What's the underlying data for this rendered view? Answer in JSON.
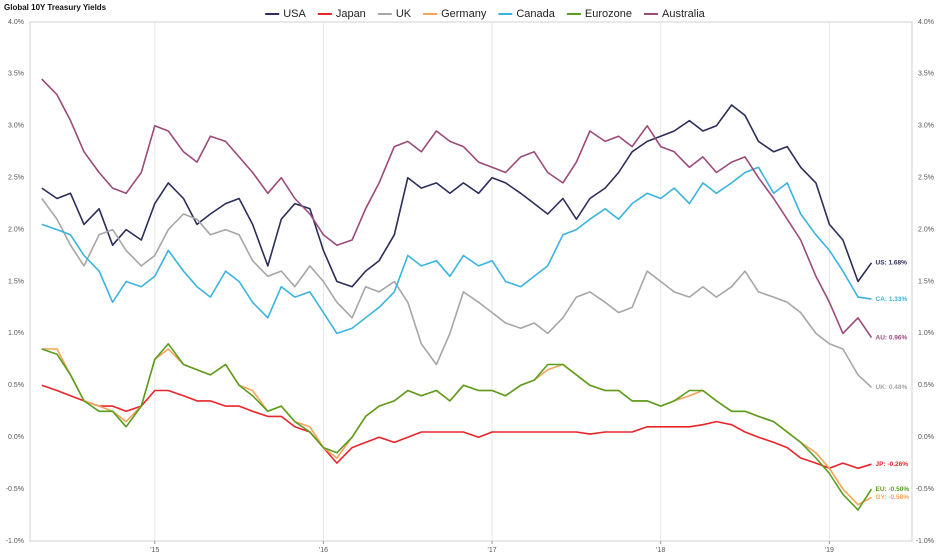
{
  "chart_data": {
    "type": "line",
    "title": "Global 10Y Treasury Yields",
    "x": [
      2014.33,
      2014.42,
      2014.5,
      2014.58,
      2014.67,
      2014.75,
      2014.83,
      2014.92,
      2015,
      2015.08,
      2015.17,
      2015.25,
      2015.33,
      2015.42,
      2015.5,
      2015.58,
      2015.67,
      2015.75,
      2015.83,
      2015.92,
      2016,
      2016.08,
      2016.17,
      2016.25,
      2016.33,
      2016.42,
      2016.5,
      2016.58,
      2016.67,
      2016.75,
      2016.83,
      2016.92,
      2017,
      2017.08,
      2017.17,
      2017.25,
      2017.33,
      2017.42,
      2017.5,
      2017.58,
      2017.67,
      2017.75,
      2017.83,
      2017.92,
      2018,
      2018.08,
      2018.17,
      2018.25,
      2018.33,
      2018.42,
      2018.5,
      2018.58,
      2018.67,
      2018.75,
      2018.83,
      2018.92,
      2019,
      2019.08,
      2019.17,
      2019.25
    ],
    "xlim": [
      2014.26,
      2019.49
    ],
    "xticks": [
      {
        "value": 2015,
        "label": "'15"
      },
      {
        "value": 2016,
        "label": "'16"
      },
      {
        "value": 2017,
        "label": "'17"
      },
      {
        "value": 2018,
        "label": "'18"
      },
      {
        "value": 2019,
        "label": "'19"
      }
    ],
    "ylim": [
      -1.0,
      4.0
    ],
    "yticks": [
      {
        "value": -1.0,
        "label": "-1.0%"
      },
      {
        "value": -0.5,
        "label": "-0.5%"
      },
      {
        "value": 0,
        "label": "0.0%"
      },
      {
        "value": 0.5,
        "label": "0.5%"
      },
      {
        "value": 1.0,
        "label": "1.0%"
      },
      {
        "value": 1.5,
        "label": "1.5%"
      },
      {
        "value": 2.0,
        "label": "2.0%"
      },
      {
        "value": 2.5,
        "label": "2.5%"
      },
      {
        "value": 3.0,
        "label": "3.0%"
      },
      {
        "value": 3.5,
        "label": "3.5%"
      },
      {
        "value": 4.0,
        "label": "4.0%"
      }
    ],
    "grid": "x",
    "legend": "top",
    "series": [
      {
        "name": "USA",
        "color": "#2b2d5a",
        "end_label": "US: 1.68%",
        "values": [
          2.4,
          2.3,
          2.35,
          2.05,
          2.2,
          1.85,
          2.0,
          1.9,
          2.25,
          2.45,
          2.3,
          2.05,
          2.15,
          2.25,
          2.3,
          2.05,
          1.65,
          2.1,
          2.25,
          2.2,
          1.8,
          1.5,
          1.45,
          1.6,
          1.7,
          1.95,
          2.5,
          2.4,
          2.45,
          2.35,
          2.45,
          2.35,
          2.5,
          2.45,
          2.35,
          2.25,
          2.15,
          2.3,
          2.1,
          2.3,
          2.4,
          2.55,
          2.75,
          2.85,
          2.9,
          2.95,
          3.05,
          2.95,
          3.0,
          3.2,
          3.1,
          2.85,
          2.75,
          2.8,
          2.6,
          2.45,
          2.05,
          1.9,
          1.5,
          1.68
        ]
      },
      {
        "name": "Japan",
        "color": "#e8262a",
        "end_label": "JP: -0.26%",
        "values": [
          0.5,
          0.45,
          0.4,
          0.35,
          0.3,
          0.3,
          0.25,
          0.3,
          0.45,
          0.45,
          0.4,
          0.35,
          0.35,
          0.3,
          0.3,
          0.25,
          0.2,
          0.2,
          0.1,
          0.05,
          -0.1,
          -0.25,
          -0.1,
          -0.05,
          0.0,
          -0.05,
          0.0,
          0.05,
          0.05,
          0.05,
          0.05,
          0.0,
          0.05,
          0.05,
          0.05,
          0.05,
          0.05,
          0.05,
          0.05,
          0.03,
          0.05,
          0.05,
          0.05,
          0.1,
          0.1,
          0.1,
          0.1,
          0.12,
          0.15,
          0.12,
          0.05,
          0.0,
          -0.05,
          -0.1,
          -0.2,
          -0.25,
          -0.3,
          -0.25,
          -0.3,
          -0.26
        ]
      },
      {
        "name": "UK",
        "color": "#a6a6a6",
        "end_label": "UK: 0.48%",
        "values": [
          2.3,
          2.1,
          1.85,
          1.65,
          1.95,
          2.0,
          1.8,
          1.65,
          1.75,
          2.0,
          2.15,
          2.1,
          1.95,
          2.0,
          1.95,
          1.7,
          1.55,
          1.6,
          1.45,
          1.65,
          1.5,
          1.3,
          1.15,
          1.45,
          1.4,
          1.5,
          1.3,
          0.9,
          0.7,
          1.0,
          1.4,
          1.3,
          1.2,
          1.1,
          1.05,
          1.1,
          1.0,
          1.15,
          1.35,
          1.4,
          1.3,
          1.2,
          1.25,
          1.6,
          1.5,
          1.4,
          1.35,
          1.45,
          1.35,
          1.45,
          1.6,
          1.4,
          1.35,
          1.3,
          1.2,
          1.0,
          0.9,
          0.85,
          0.6,
          0.48
        ]
      },
      {
        "name": "Germany",
        "color": "#f5a35a",
        "end_label": "GY: -0.58%",
        "values": [
          0.85,
          0.85,
          0.6,
          0.35,
          0.3,
          0.25,
          0.15,
          0.3,
          0.75,
          0.85,
          0.7,
          0.65,
          0.6,
          0.7,
          0.5,
          0.45,
          0.25,
          0.3,
          0.15,
          0.1,
          -0.1,
          -0.2,
          0.0,
          0.2,
          0.3,
          0.35,
          0.45,
          0.4,
          0.45,
          0.35,
          0.5,
          0.45,
          0.45,
          0.4,
          0.5,
          0.55,
          0.65,
          0.7,
          0.6,
          0.5,
          0.45,
          0.45,
          0.35,
          0.35,
          0.3,
          0.35,
          0.4,
          0.45,
          0.35,
          0.25,
          0.25,
          0.2,
          0.15,
          0.05,
          -0.05,
          -0.15,
          -0.3,
          -0.5,
          -0.65,
          -0.58
        ]
      },
      {
        "name": "Canada",
        "color": "#3bb3e0",
        "end_label": "CA: 1.33%",
        "values": [
          2.05,
          2.0,
          1.95,
          1.75,
          1.6,
          1.3,
          1.5,
          1.45,
          1.55,
          1.8,
          1.6,
          1.45,
          1.35,
          1.6,
          1.5,
          1.3,
          1.15,
          1.45,
          1.35,
          1.4,
          1.2,
          1.0,
          1.05,
          1.15,
          1.25,
          1.4,
          1.75,
          1.65,
          1.7,
          1.55,
          1.75,
          1.65,
          1.7,
          1.5,
          1.45,
          1.55,
          1.65,
          1.95,
          2.0,
          2.1,
          2.2,
          2.1,
          2.25,
          2.35,
          2.3,
          2.4,
          2.25,
          2.45,
          2.35,
          2.45,
          2.55,
          2.6,
          2.35,
          2.45,
          2.15,
          1.95,
          1.8,
          1.6,
          1.35,
          1.33
        ]
      },
      {
        "name": "Eurozone",
        "color": "#5a9e1f",
        "end_label": "EU: -0.50%",
        "values": [
          0.85,
          0.8,
          0.6,
          0.35,
          0.25,
          0.25,
          0.1,
          0.3,
          0.75,
          0.9,
          0.7,
          0.65,
          0.6,
          0.7,
          0.5,
          0.4,
          0.25,
          0.3,
          0.15,
          0.05,
          -0.1,
          -0.15,
          0.0,
          0.2,
          0.3,
          0.35,
          0.45,
          0.4,
          0.45,
          0.35,
          0.5,
          0.45,
          0.45,
          0.4,
          0.5,
          0.55,
          0.7,
          0.7,
          0.6,
          0.5,
          0.45,
          0.45,
          0.35,
          0.35,
          0.3,
          0.35,
          0.45,
          0.45,
          0.35,
          0.25,
          0.25,
          0.2,
          0.15,
          0.05,
          -0.05,
          -0.2,
          -0.35,
          -0.55,
          -0.7,
          -0.5
        ]
      },
      {
        "name": "Australia",
        "color": "#9b4a7a",
        "end_label": "AU: 0.96%",
        "values": [
          3.45,
          3.3,
          3.05,
          2.75,
          2.55,
          2.4,
          2.35,
          2.55,
          3.0,
          2.95,
          2.75,
          2.65,
          2.9,
          2.85,
          2.7,
          2.55,
          2.35,
          2.5,
          2.3,
          2.15,
          1.95,
          1.85,
          1.9,
          2.2,
          2.45,
          2.8,
          2.85,
          2.75,
          2.95,
          2.85,
          2.8,
          2.65,
          2.6,
          2.55,
          2.7,
          2.75,
          2.55,
          2.45,
          2.65,
          2.95,
          2.85,
          2.9,
          2.8,
          3.0,
          2.8,
          2.75,
          2.6,
          2.7,
          2.55,
          2.65,
          2.7,
          2.5,
          2.3,
          2.1,
          1.9,
          1.55,
          1.3,
          1.0,
          1.15,
          0.96
        ]
      }
    ]
  }
}
